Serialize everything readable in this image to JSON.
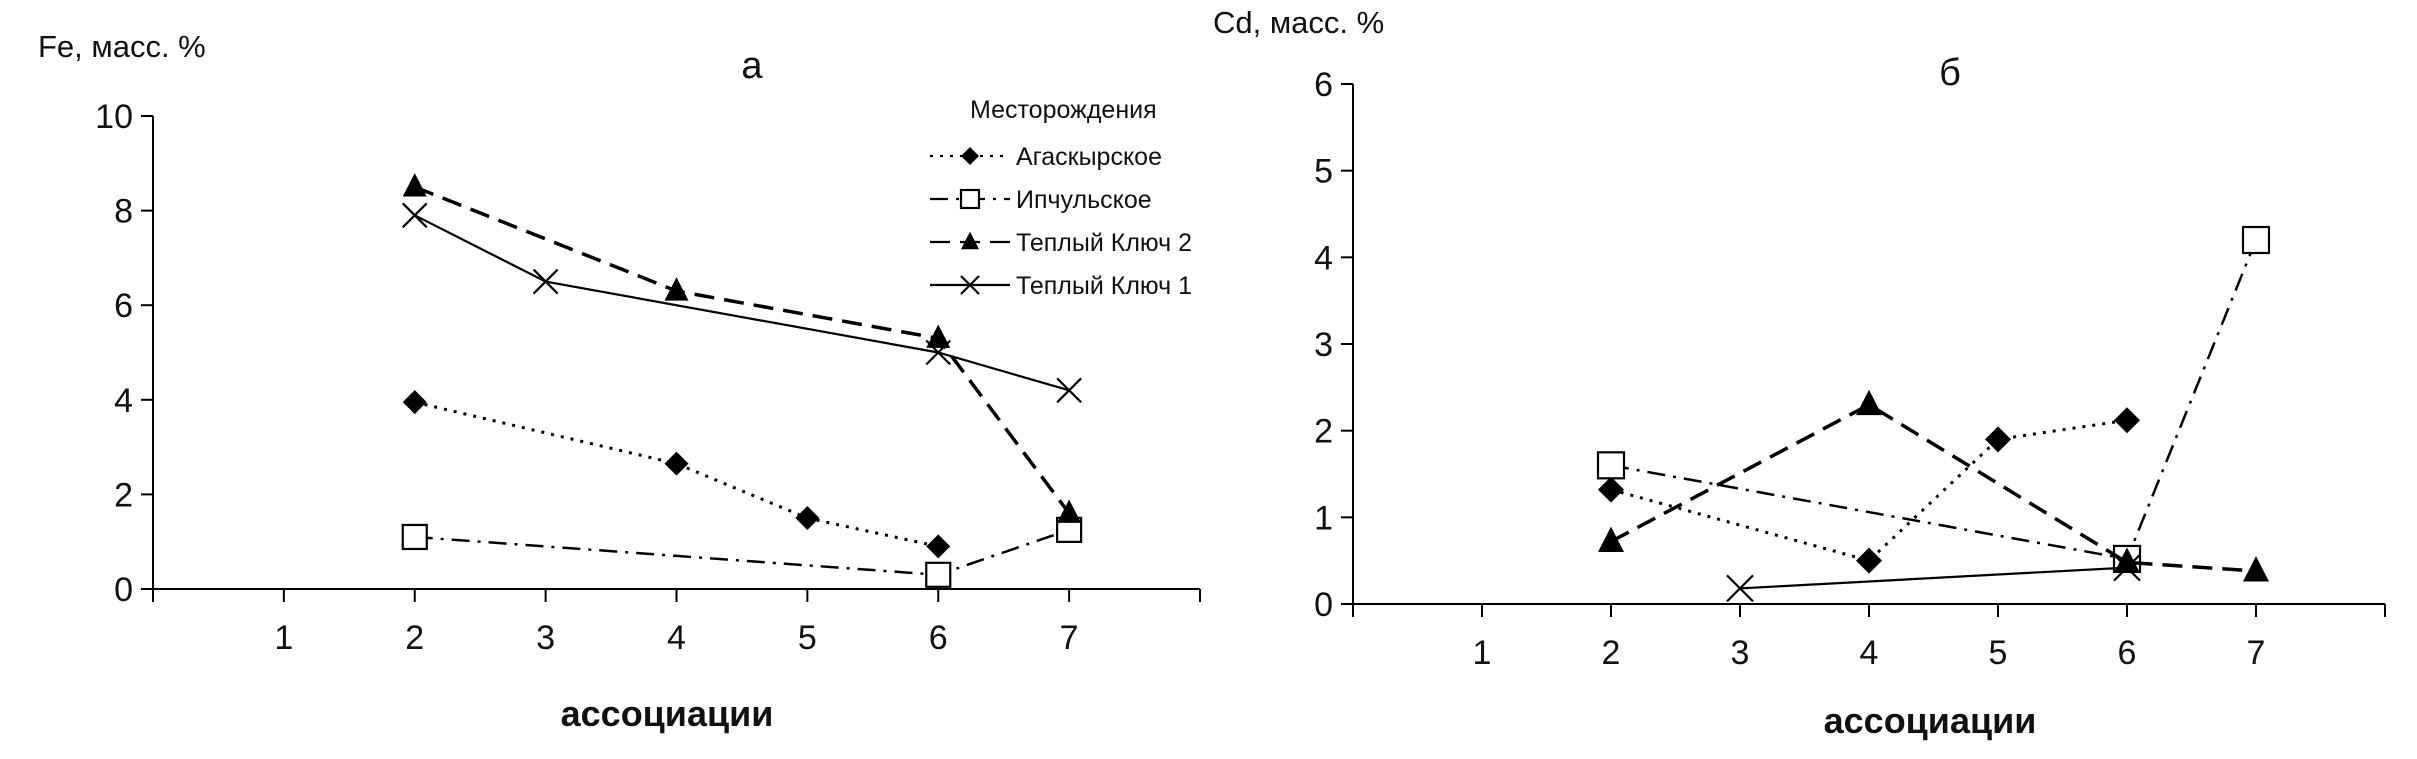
{
  "legend": {
    "title": "Месторождения",
    "entries": [
      {
        "name": "Агаскырское",
        "marker": "diamond-filled",
        "dash": "dotted"
      },
      {
        "name": "Ипчульское",
        "marker": "square-open",
        "dash": "dash-dot"
      },
      {
        "name": "Теплый Ключ 2",
        "marker": "triangle-filled",
        "dash": "dashed"
      },
      {
        "name": "Теплый Ключ 1",
        "marker": "x-cross",
        "dash": "solid"
      }
    ]
  },
  "chart_data": [
    {
      "type": "line",
      "panel": "а",
      "title": "а",
      "ylabel": "Fe, масс. %",
      "xlabel": "ассоциации",
      "xlim": [
        0,
        8
      ],
      "ylim": [
        0,
        10
      ],
      "xticks": [
        1,
        2,
        3,
        4,
        5,
        6,
        7
      ],
      "yticks": [
        0,
        2,
        4,
        6,
        8,
        10
      ],
      "grid": false,
      "legend_position": "top-right",
      "series": [
        {
          "name": "Агаскырское",
          "x": [
            2,
            4,
            5,
            6
          ],
          "y": [
            3.95,
            2.65,
            1.5,
            0.9
          ]
        },
        {
          "name": "Ипчульское",
          "x": [
            2,
            6,
            7
          ],
          "y": [
            1.1,
            0.3,
            1.25
          ]
        },
        {
          "name": "Теплый Ключ 2",
          "x": [
            2,
            4,
            6,
            7
          ],
          "y": [
            8.5,
            6.3,
            5.3,
            1.6
          ]
        },
        {
          "name": "Теплый Ключ 1",
          "x": [
            2,
            3,
            6,
            7
          ],
          "y": [
            7.9,
            6.5,
            5.0,
            4.2
          ]
        }
      ]
    },
    {
      "type": "line",
      "panel": "б",
      "title": "б",
      "ylabel": "Cd, масс. %",
      "xlabel": "ассоциации",
      "xlim": [
        0,
        8
      ],
      "ylim": [
        0,
        6
      ],
      "xticks": [
        1,
        2,
        3,
        4,
        5,
        6,
        7
      ],
      "yticks": [
        0,
        1,
        2,
        3,
        4,
        5,
        6
      ],
      "grid": false,
      "series": [
        {
          "name": "Агаскырское",
          "x": [
            2,
            4,
            5,
            6
          ],
          "y": [
            1.32,
            0.5,
            1.9,
            2.12
          ]
        },
        {
          "name": "Ипчульское",
          "x": [
            2,
            6,
            7
          ],
          "y": [
            1.6,
            0.52,
            4.2
          ]
        },
        {
          "name": "Теплый Ключ 2",
          "x": [
            2,
            4,
            6,
            7
          ],
          "y": [
            0.72,
            2.3,
            0.48,
            0.38
          ]
        },
        {
          "name": "Теплый Ключ 1",
          "x": [
            3,
            6
          ],
          "y": [
            0.18,
            0.42
          ]
        }
      ]
    }
  ]
}
